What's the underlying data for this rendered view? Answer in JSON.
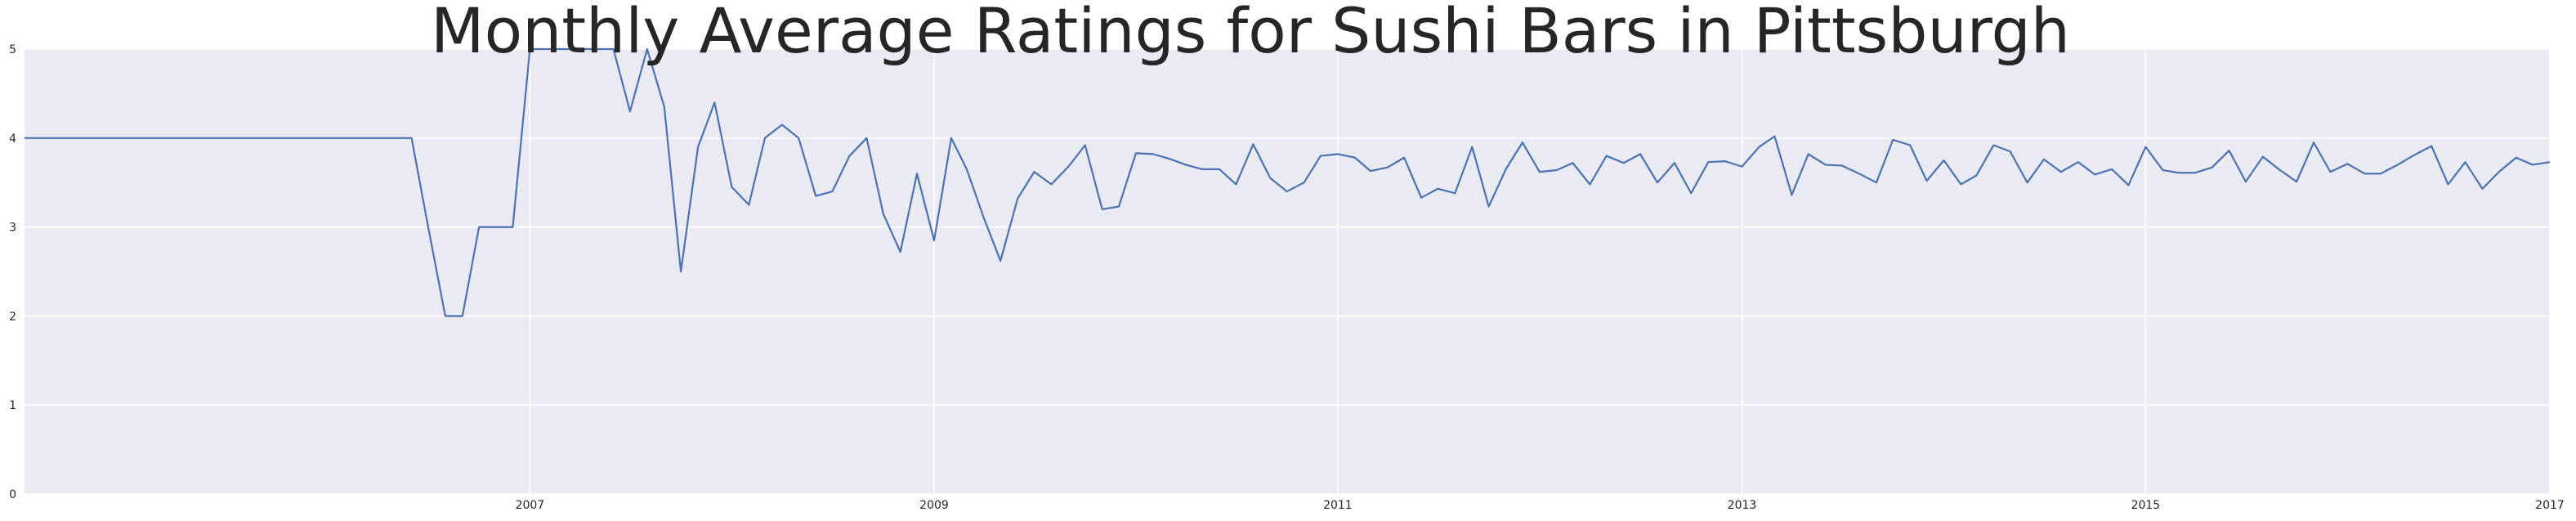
{
  "chart_data": {
    "type": "line",
    "title": "Monthly Average Ratings for Sushi Bars in Pittsburgh",
    "xlabel": "",
    "ylabel": "",
    "x_axis_type": "date",
    "xlim": [
      "2004-07-01",
      "2017-01-01"
    ],
    "ylim": [
      0,
      5
    ],
    "x_ticks": [
      {
        "value": "2007-01-01",
        "label": "2007"
      },
      {
        "value": "2009-01-01",
        "label": "2009"
      },
      {
        "value": "2011-01-01",
        "label": "2011"
      },
      {
        "value": "2013-01-01",
        "label": "2013"
      },
      {
        "value": "2015-01-01",
        "label": "2015"
      },
      {
        "value": "2017-01-01",
        "label": "2017"
      }
    ],
    "y_ticks": [
      0,
      1,
      2,
      3,
      4,
      5
    ],
    "grid": true,
    "legend": "none",
    "colors": {
      "plot_background": "#eaeaf2",
      "grid": "#ffffff",
      "line": "#4c72b0",
      "text": "#262626"
    },
    "series": [
      {
        "points": [
          [
            "2004-07-01",
            4.0
          ],
          [
            "2006-06-01",
            4.0
          ],
          [
            "2006-07-01",
            3.0
          ],
          [
            "2006-08-01",
            2.0
          ],
          [
            "2006-09-01",
            2.0
          ],
          [
            "2006-10-01",
            3.0
          ],
          [
            "2006-11-01",
            3.0
          ],
          [
            "2006-12-01",
            3.0
          ],
          [
            "2007-01-01",
            5.0
          ],
          [
            "2007-02-01",
            5.0
          ],
          [
            "2007-03-01",
            5.0
          ],
          [
            "2007-04-01",
            5.0
          ],
          [
            "2007-05-01",
            5.0
          ],
          [
            "2007-06-01",
            5.0
          ],
          [
            "2007-07-01",
            4.3
          ],
          [
            "2007-08-01",
            5.0
          ],
          [
            "2007-09-01",
            4.35
          ],
          [
            "2007-10-01",
            2.5
          ],
          [
            "2007-11-01",
            3.9
          ],
          [
            "2007-12-01",
            4.4
          ],
          [
            "2008-01-01",
            3.45
          ],
          [
            "2008-02-01",
            3.25
          ],
          [
            "2008-03-01",
            4.0
          ],
          [
            "2008-04-01",
            4.15
          ],
          [
            "2008-05-01",
            4.0
          ],
          [
            "2008-06-01",
            3.35
          ],
          [
            "2008-07-01",
            3.4
          ],
          [
            "2008-08-01",
            3.8
          ],
          [
            "2008-09-01",
            4.0
          ],
          [
            "2008-10-01",
            3.15
          ],
          [
            "2008-11-01",
            2.72
          ],
          [
            "2008-12-01",
            3.6
          ],
          [
            "2009-01-01",
            2.85
          ],
          [
            "2009-02-01",
            4.0
          ],
          [
            "2009-03-01",
            3.65
          ],
          [
            "2009-04-01",
            3.1
          ],
          [
            "2009-05-01",
            2.62
          ],
          [
            "2009-06-01",
            3.32
          ],
          [
            "2009-07-01",
            3.62
          ],
          [
            "2009-08-01",
            3.48
          ],
          [
            "2009-09-01",
            3.68
          ],
          [
            "2009-10-01",
            3.92
          ],
          [
            "2009-11-01",
            3.2
          ],
          [
            "2009-12-01",
            3.23
          ],
          [
            "2010-01-01",
            3.83
          ],
          [
            "2010-02-01",
            3.82
          ],
          [
            "2010-03-01",
            3.77
          ],
          [
            "2010-04-01",
            3.7
          ],
          [
            "2010-05-01",
            3.65
          ],
          [
            "2010-06-01",
            3.65
          ],
          [
            "2010-07-01",
            3.48
          ],
          [
            "2010-08-01",
            3.93
          ],
          [
            "2010-09-01",
            3.55
          ],
          [
            "2010-10-01",
            3.4
          ],
          [
            "2010-11-01",
            3.5
          ],
          [
            "2010-12-01",
            3.8
          ],
          [
            "2011-01-01",
            3.82
          ],
          [
            "2011-02-01",
            3.78
          ],
          [
            "2011-03-01",
            3.63
          ],
          [
            "2011-04-01",
            3.67
          ],
          [
            "2011-05-01",
            3.78
          ],
          [
            "2011-06-01",
            3.33
          ],
          [
            "2011-07-01",
            3.43
          ],
          [
            "2011-08-01",
            3.38
          ],
          [
            "2011-09-01",
            3.9
          ],
          [
            "2011-10-01",
            3.23
          ],
          [
            "2011-11-01",
            3.65
          ],
          [
            "2011-12-01",
            3.95
          ],
          [
            "2012-01-01",
            3.62
          ],
          [
            "2012-02-01",
            3.64
          ],
          [
            "2012-03-01",
            3.72
          ],
          [
            "2012-04-01",
            3.48
          ],
          [
            "2012-05-01",
            3.8
          ],
          [
            "2012-06-01",
            3.72
          ],
          [
            "2012-07-01",
            3.82
          ],
          [
            "2012-08-01",
            3.5
          ],
          [
            "2012-09-01",
            3.72
          ],
          [
            "2012-10-01",
            3.38
          ],
          [
            "2012-11-01",
            3.73
          ],
          [
            "2012-12-01",
            3.74
          ],
          [
            "2013-01-01",
            3.68
          ],
          [
            "2013-02-01",
            3.9
          ],
          [
            "2013-03-01",
            4.02
          ],
          [
            "2013-04-01",
            3.36
          ],
          [
            "2013-05-01",
            3.82
          ],
          [
            "2013-06-01",
            3.7
          ],
          [
            "2013-07-01",
            3.69
          ],
          [
            "2013-08-01",
            3.6
          ],
          [
            "2013-09-01",
            3.5
          ],
          [
            "2013-10-01",
            3.98
          ],
          [
            "2013-11-01",
            3.92
          ],
          [
            "2013-12-01",
            3.52
          ],
          [
            "2014-01-01",
            3.75
          ],
          [
            "2014-02-01",
            3.48
          ],
          [
            "2014-03-01",
            3.58
          ],
          [
            "2014-04-01",
            3.92
          ],
          [
            "2014-05-01",
            3.85
          ],
          [
            "2014-06-01",
            3.5
          ],
          [
            "2014-07-01",
            3.76
          ],
          [
            "2014-08-01",
            3.62
          ],
          [
            "2014-09-01",
            3.73
          ],
          [
            "2014-10-01",
            3.59
          ],
          [
            "2014-11-01",
            3.65
          ],
          [
            "2014-12-01",
            3.47
          ],
          [
            "2015-01-01",
            3.9
          ],
          [
            "2015-02-01",
            3.64
          ],
          [
            "2015-03-01",
            3.61
          ],
          [
            "2015-04-01",
            3.61
          ],
          [
            "2015-05-01",
            3.67
          ],
          [
            "2015-06-01",
            3.86
          ],
          [
            "2015-07-01",
            3.51
          ],
          [
            "2015-08-01",
            3.79
          ],
          [
            "2015-09-01",
            3.64
          ],
          [
            "2015-10-01",
            3.51
          ],
          [
            "2015-11-01",
            3.95
          ],
          [
            "2015-12-01",
            3.62
          ],
          [
            "2016-01-01",
            3.71
          ],
          [
            "2016-02-01",
            3.6
          ],
          [
            "2016-03-01",
            3.6
          ],
          [
            "2016-04-01",
            3.7
          ],
          [
            "2016-05-01",
            3.81
          ],
          [
            "2016-06-01",
            3.91
          ],
          [
            "2016-07-01",
            3.48
          ],
          [
            "2016-08-01",
            3.73
          ],
          [
            "2016-09-01",
            3.43
          ],
          [
            "2016-10-01",
            3.62
          ],
          [
            "2016-11-01",
            3.78
          ],
          [
            "2016-12-01",
            3.7
          ],
          [
            "2017-01-01",
            3.73
          ]
        ]
      }
    ]
  }
}
